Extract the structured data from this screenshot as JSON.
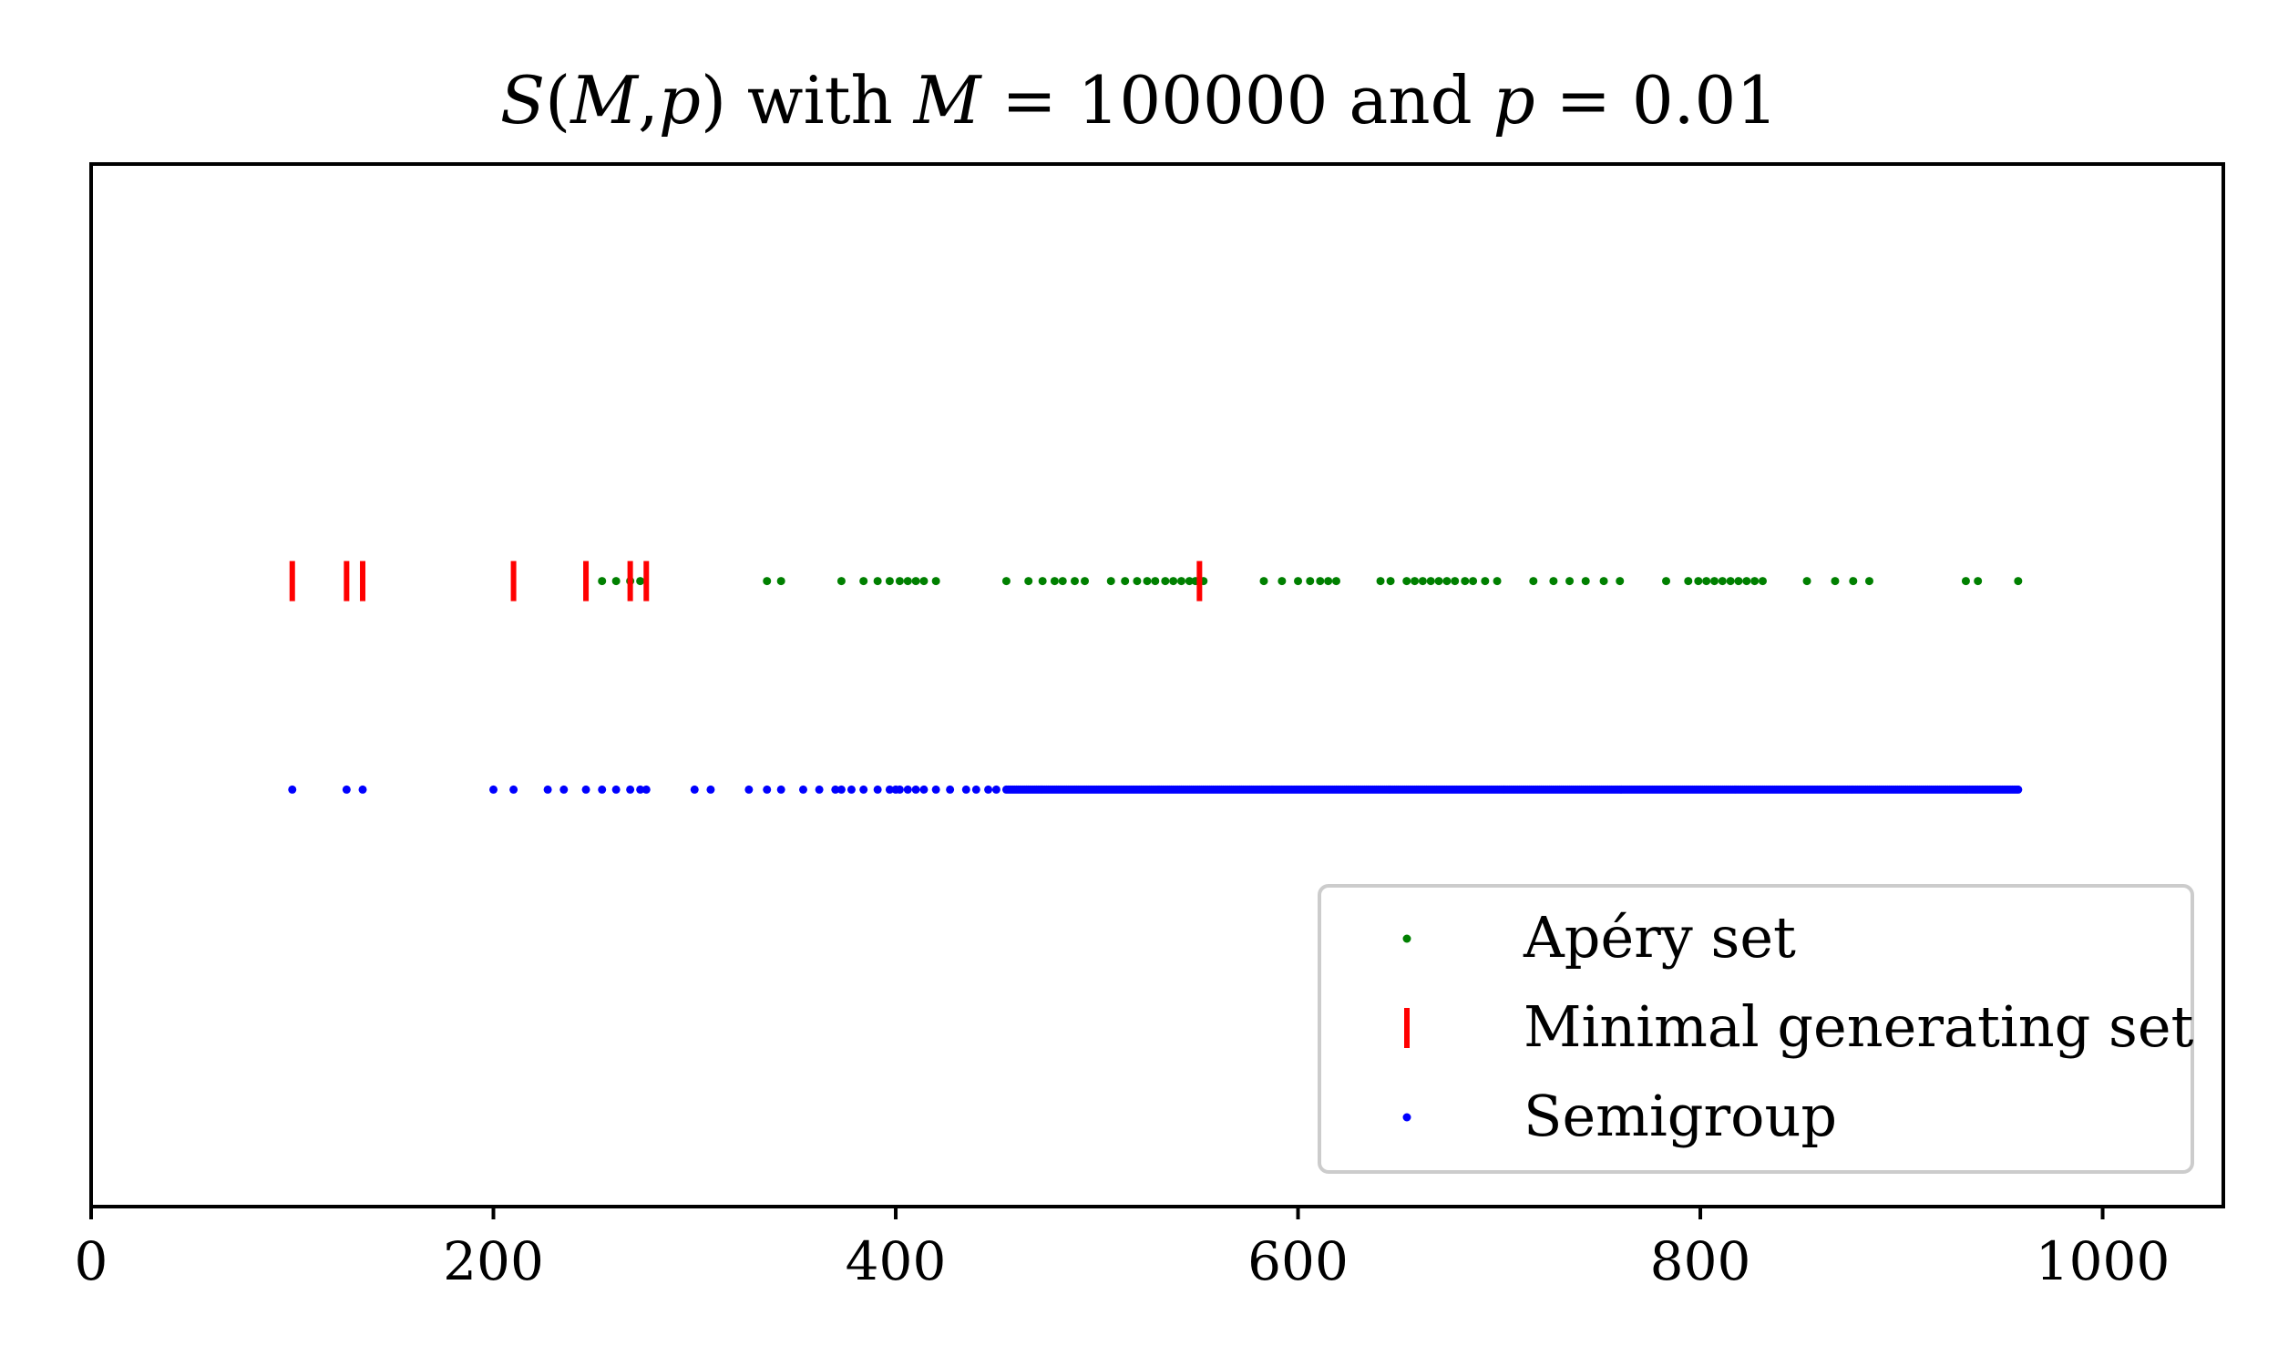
{
  "chart_data": {
    "type": "scatter",
    "title": "S(M,p) with M = 100000 and p = 0.01",
    "title_parts": {
      "S": "S",
      "open": "(",
      "M": "M",
      "comma": ",",
      "p": "p",
      "close": ")",
      "with": " with ",
      "M2": "M",
      "eq1": " = ",
      "Mval": "100000",
      "and": " and ",
      "p2": "p",
      "eq2": " = ",
      "pval": "0.01"
    },
    "xlabel": "",
    "ylabel": "",
    "xlim": [
      0,
      1060
    ],
    "ylim": [
      0,
      1
    ],
    "y_ticks_visible": false,
    "x_ticks": [
      0,
      200,
      400,
      600,
      800,
      1000
    ],
    "x_tick_labels": [
      "0",
      "200",
      "400",
      "600",
      "800",
      "1000"
    ],
    "grid": false,
    "legend_placement": "lower-right",
    "series": [
      {
        "name": "Apéry set",
        "marker": "dot",
        "color": "#008000",
        "y": 0.6,
        "x": [
          254,
          261,
          268,
          273,
          336,
          343,
          373,
          384,
          391,
          397,
          402,
          406,
          410,
          414,
          420,
          455,
          466,
          473,
          479,
          483,
          489,
          494,
          507,
          514,
          520,
          525,
          529,
          534,
          538,
          542,
          546,
          549,
          553,
          583,
          592,
          600,
          606,
          611,
          615,
          619,
          641,
          646,
          654,
          658,
          662,
          666,
          670,
          674,
          678,
          683,
          687,
          693,
          699,
          717,
          727,
          735,
          743,
          752,
          760,
          783,
          794,
          799,
          803,
          807,
          811,
          815,
          819,
          823,
          827,
          831,
          853,
          867,
          876,
          884,
          932,
          938,
          958
        ]
      },
      {
        "name": "Minimal generating set",
        "marker": "vline",
        "color": "#ff0000",
        "y": 0.6,
        "x": [
          100,
          127,
          135,
          210,
          246,
          268,
          276,
          551
        ]
      },
      {
        "name": "Semigroup",
        "marker": "dot",
        "color": "#0000ff",
        "y": 0.4,
        "dense_from": 455,
        "dense_to": 958,
        "dense_step": 1,
        "x": [
          100,
          127,
          135,
          200,
          210,
          227,
          235,
          246,
          254,
          261,
          268,
          273,
          276,
          300,
          308,
          327,
          336,
          343,
          354,
          362,
          370,
          373,
          378,
          384,
          391,
          397,
          400,
          402,
          406,
          410,
          414,
          420,
          427,
          435,
          440,
          446,
          450
        ]
      }
    ]
  }
}
